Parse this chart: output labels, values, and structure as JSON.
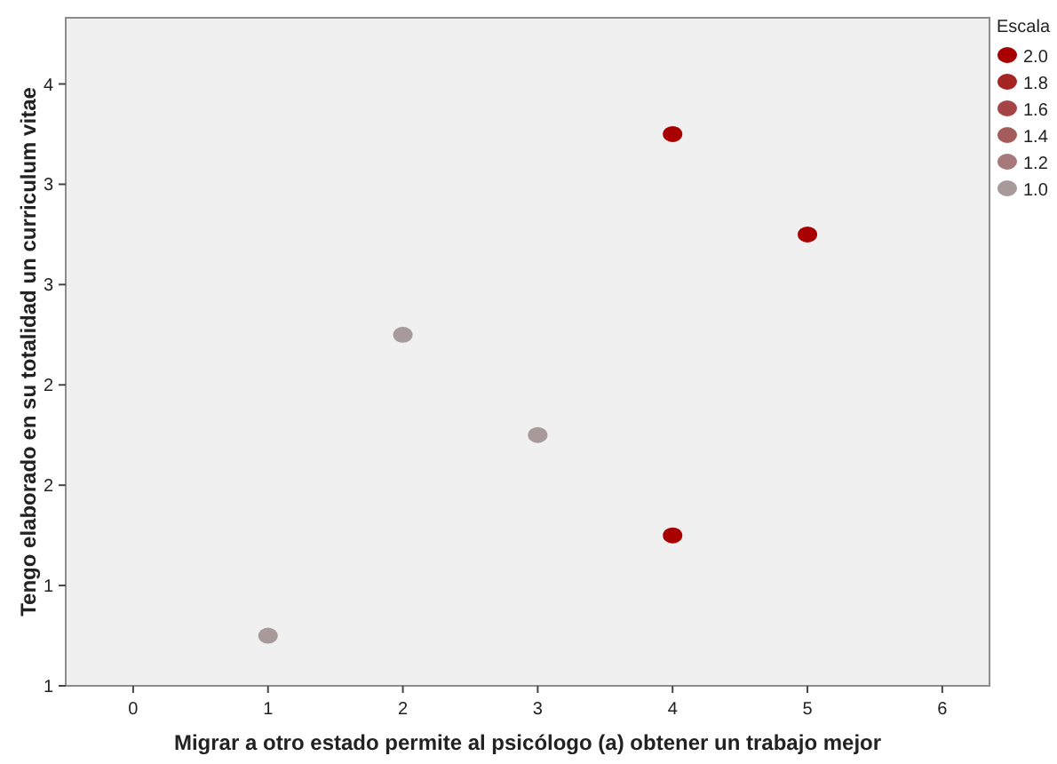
{
  "chart_data": {
    "type": "scatter",
    "xlabel": "Migrar a otro estado permite al psicólogo (a) obtener un trabajo mejor",
    "ylabel": "Tengo elaborado en su totalidad un curriculum vitae",
    "legend_title": "Escala",
    "legend": "top right",
    "marker": "circle",
    "grid": false,
    "xlim": [
      -0.5,
      6.35
    ],
    "xticks": [
      0,
      1,
      2,
      3,
      4,
      5,
      6
    ],
    "ylim": [
      1,
      4.33
    ],
    "yticks": [
      {
        "value": 1,
        "label": "1"
      },
      {
        "value": 1.5,
        "label": "1"
      },
      {
        "value": 2,
        "label": "2"
      },
      {
        "value": 2.5,
        "label": "2"
      },
      {
        "value": 3,
        "label": "3"
      },
      {
        "value": 3.5,
        "label": "3"
      },
      {
        "value": 4,
        "label": "4"
      }
    ],
    "series": [
      {
        "name": "2.0",
        "color": "#a80000",
        "x": [
          4,
          5,
          4
        ],
        "values": [
          3.75,
          3.25,
          1.75
        ]
      },
      {
        "name": "1.8",
        "color": "#a52525"
      },
      {
        "name": "1.6",
        "color": "#a54444"
      },
      {
        "name": "1.4",
        "color": "#a55c5c"
      },
      {
        "name": "1.2",
        "color": "#a67a7a"
      },
      {
        "name": "1.0",
        "color": "#a89a9a",
        "x": [
          1,
          2,
          3
        ],
        "values": [
          1.25,
          2.75,
          2.25
        ]
      }
    ]
  }
}
